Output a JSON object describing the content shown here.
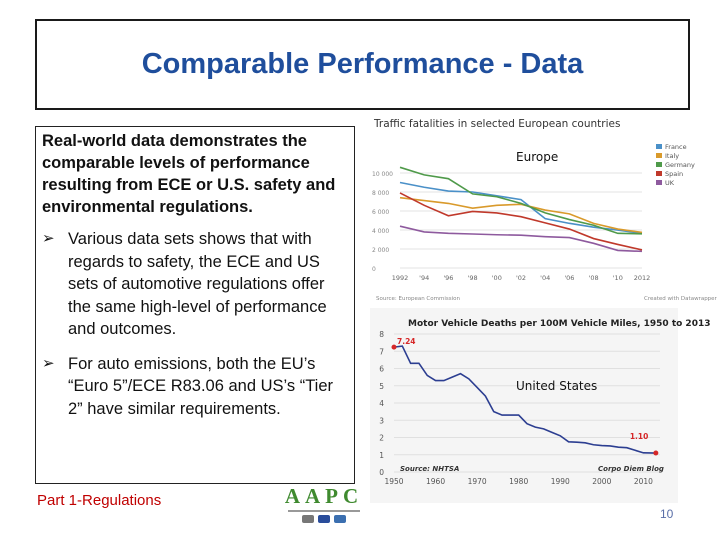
{
  "slide": {
    "title": "Comparable Performance - Data",
    "lead": "Real-world data demonstrates the comparable levels of performance resulting from ECE or U.S. safety and environmental regulations.",
    "bullets": [
      "Various data sets shows that with regards to safety, the ECE and US sets of automotive regulations offer the same high-level of performance and outcomes.",
      "For auto emissions, both the EU’s “Euro 5”/ECE R83.06 and US’s “Tier 2” have similar requirements."
    ],
    "footer": "Part 1-Regulations",
    "page_number": "10",
    "logo_text": "AAPC"
  },
  "chart_data": [
    {
      "type": "line",
      "title": "Traffic fatalities in selected European countries",
      "overlay_label": "Europe",
      "source": "Source: European Commission",
      "credit": "Created with Datawrapper",
      "x": [
        1992,
        1994,
        1996,
        1998,
        2000,
        2002,
        2004,
        2006,
        2008,
        2010,
        2012
      ],
      "x_tick_labels": [
        "1992",
        "'94",
        "'96",
        "'98",
        "'00",
        "'02",
        "'04",
        "'06",
        "'08",
        "'10",
        "2012"
      ],
      "y_tick_labels": [
        "10 000",
        "8 000",
        "6 000",
        "4 000",
        "2 000",
        "0"
      ],
      "y_ticks": [
        10000,
        8000,
        6000,
        4000,
        2000,
        0
      ],
      "ylim": [
        0,
        12000
      ],
      "series": [
        {
          "name": "France",
          "color": "#4a90c8",
          "values": [
            9000,
            8500,
            8100,
            8000,
            7600,
            7200,
            5200,
            4700,
            4300,
            3990,
            3650
          ]
        },
        {
          "name": "Italy",
          "color": "#d99a2b",
          "values": [
            7400,
            7100,
            6800,
            6300,
            6600,
            6700,
            6100,
            5700,
            4700,
            4100,
            3750
          ]
        },
        {
          "name": "Germany",
          "color": "#4f9a4a",
          "values": [
            10600,
            9800,
            9400,
            7800,
            7500,
            6800,
            5800,
            5100,
            4500,
            3650,
            3600
          ]
        },
        {
          "name": "Spain",
          "color": "#c0392b",
          "values": [
            7900,
            6600,
            5500,
            5950,
            5800,
            5400,
            4750,
            4100,
            3100,
            2480,
            1900
          ]
        },
        {
          "name": "UK",
          "color": "#8e5a9e",
          "values": [
            4400,
            3800,
            3650,
            3580,
            3500,
            3450,
            3300,
            3200,
            2600,
            1850,
            1750
          ]
        }
      ],
      "legend_position": "right"
    },
    {
      "type": "line",
      "title": "Motor Vehicle Deaths per 100M Vehicle Miles, 1950 to 2013",
      "overlay_label": "United States",
      "source": "Source: NHTSA",
      "credit": "Corpo Diem Blog",
      "x_ticks": [
        1950,
        1960,
        1970,
        1980,
        1990,
        2000,
        2010
      ],
      "y_ticks": [
        0,
        1,
        2,
        3,
        4,
        5,
        6,
        7,
        8
      ],
      "xlim": [
        1950,
        2014
      ],
      "ylim": [
        0,
        8
      ],
      "start_label": "7.24",
      "end_label": "1.10",
      "series": [
        {
          "color": "#2c3e91",
          "x": [
            1950,
            1952,
            1954,
            1956,
            1958,
            1960,
            1962,
            1964,
            1966,
            1968,
            1970,
            1972,
            1974,
            1976,
            1978,
            1980,
            1982,
            1984,
            1986,
            1988,
            1990,
            1992,
            1994,
            1996,
            1998,
            2000,
            2002,
            2004,
            2006,
            2008,
            2010,
            2013
          ],
          "values": [
            7.24,
            7.3,
            6.3,
            6.3,
            5.6,
            5.3,
            5.3,
            5.5,
            5.7,
            5.4,
            4.9,
            4.4,
            3.5,
            3.3,
            3.3,
            3.3,
            2.8,
            2.6,
            2.5,
            2.3,
            2.1,
            1.75,
            1.73,
            1.69,
            1.58,
            1.53,
            1.51,
            1.44,
            1.41,
            1.26,
            1.11,
            1.1
          ]
        }
      ],
      "markers": {
        "start_color": "#d62728",
        "end_color": "#d62728"
      }
    }
  ]
}
